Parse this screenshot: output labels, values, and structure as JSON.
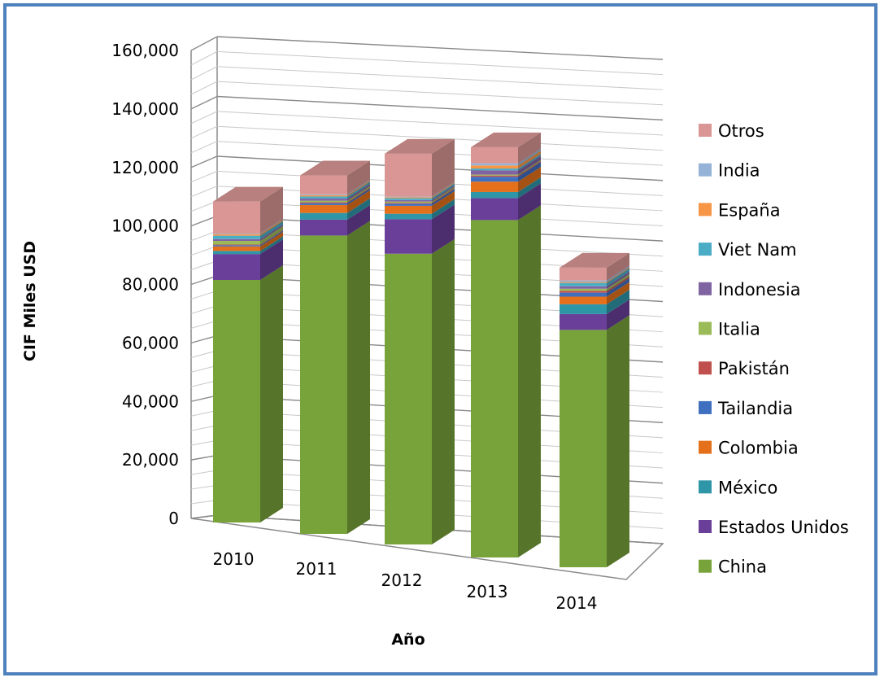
{
  "chart_data": {
    "type": "bar",
    "stacked": true,
    "three_d": true,
    "title": "",
    "xlabel": "Año",
    "ylabel": "CIF  Miles  USD",
    "ylim": [
      0,
      160000
    ],
    "yticks": [
      "0",
      "20,000",
      "40,000",
      "60,000",
      "80,000",
      "100,000",
      "120,000",
      "140,000",
      "160,000"
    ],
    "categories": [
      "2010",
      "2011",
      "2012",
      "2013",
      "2014"
    ],
    "grid": true,
    "legend_position": "right",
    "series": [
      {
        "name": "China",
        "color": "#77a33a",
        "values": [
          79500,
          97800,
          95300,
          110600,
          77800
        ]
      },
      {
        "name": "Estados Unidos",
        "color": "#6a3f99",
        "values": [
          8500,
          5200,
          11300,
          7200,
          5200
        ]
      },
      {
        "name": "México",
        "color": "#2f96a8",
        "values": [
          1000,
          2200,
          1800,
          2000,
          3200
        ]
      },
      {
        "name": "Colombia",
        "color": "#e4701c",
        "values": [
          1500,
          2600,
          2600,
          3400,
          2500
        ]
      },
      {
        "name": "Tailandia",
        "color": "#3f6fbf",
        "values": [
          400,
          600,
          700,
          1600,
          1300
        ]
      },
      {
        "name": "Pakistán",
        "color": "#c0504d",
        "values": [
          200,
          300,
          300,
          400,
          600
        ]
      },
      {
        "name": "Italia",
        "color": "#9bbb59",
        "values": [
          1200,
          500,
          400,
          300,
          700
        ]
      },
      {
        "name": "Indonesia",
        "color": "#8064a2",
        "values": [
          600,
          700,
          500,
          1400,
          800
        ]
      },
      {
        "name": "Viet Nam",
        "color": "#4bacc6",
        "values": [
          1100,
          700,
          600,
          600,
          1100
        ]
      },
      {
        "name": "España",
        "color": "#f79646",
        "values": [
          500,
          400,
          300,
          1000,
          300
        ]
      },
      {
        "name": "India",
        "color": "#95b3d7",
        "values": [
          200,
          300,
          200,
          700,
          500
        ]
      },
      {
        "name": "Otros",
        "color": "#d99694",
        "values": [
          10500,
          6200,
          14100,
          5300,
          4200
        ]
      }
    ]
  }
}
